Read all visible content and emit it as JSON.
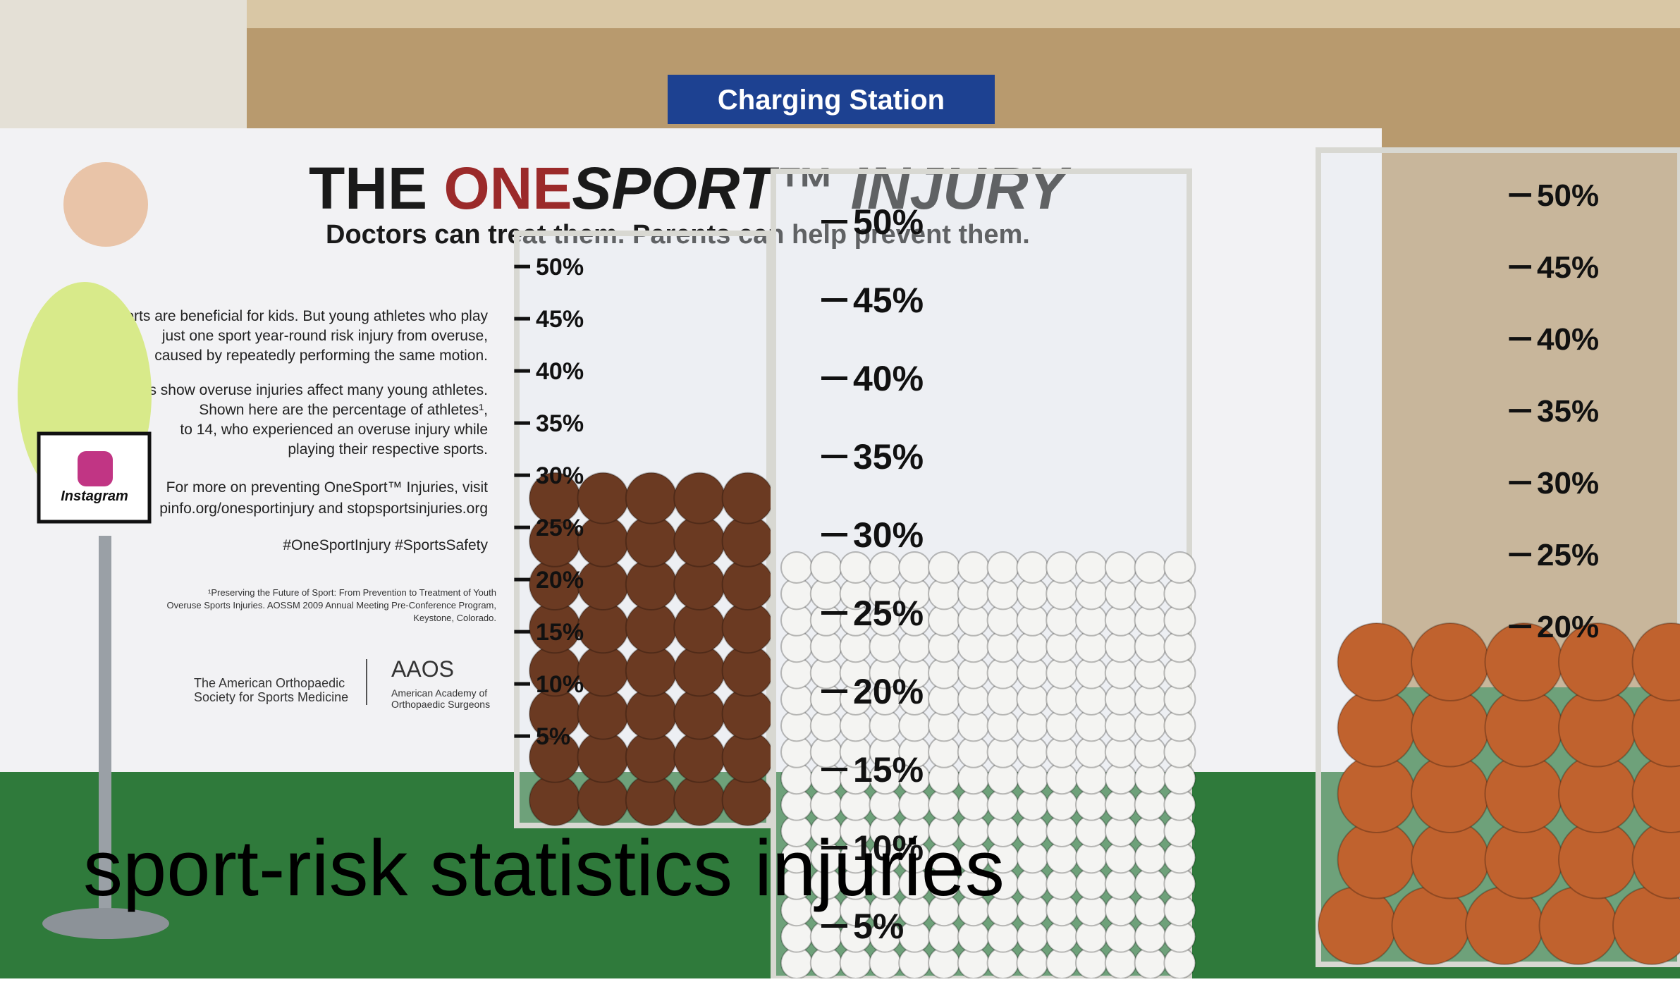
{
  "sign": "Charging Station",
  "banner": {
    "title": [
      "THE ",
      "ONE",
      "SPORT™ INJURY"
    ],
    "subtitle": "Doctors can treat them. Parents can help prevent them.",
    "paragraphs": [
      "Sports are beneficial for kids. But young athletes who play",
      "just one sport year-round risk injury from overuse,",
      "caused by repeatedly performing the same motion.",
      "Statistics show overuse injuries affect many young athletes.",
      "Shown here are the percentage of athletes¹,",
      "to 14, who experienced an overuse injury while",
      "playing their respective sports.",
      "For more on preventing OneSport™ Injuries, visit",
      "pinfo.org/onesportinjury and stopsportsinjuries.org",
      "#OneSportInjury #SportsSafety"
    ],
    "footnote": [
      "¹Preserving the Future of Sport: From Prevention to Treatment of Youth",
      "Overuse Sports Injuries. AOSSM 2009 Annual Meeting Pre-Conference Program,",
      "Keystone, Colorado."
    ],
    "logos": [
      "The American Orthopaedic",
      "Society for Sports Medicine",
      "AAOS",
      "American Academy of",
      "Orthopaedic Surgeons"
    ]
  },
  "instagram": "Instagram",
  "cases": [
    {
      "labels": [
        "50%",
        "45%",
        "40%",
        "35%",
        "30%",
        "25%",
        "20%",
        "15%",
        "10%",
        "5%"
      ]
    },
    {
      "labels": [
        "50%",
        "45%",
        "40%",
        "35%",
        "30%",
        "25%",
        "20%",
        "15%",
        "10%",
        "5%"
      ]
    },
    {
      "labels": [
        "50%",
        "45%",
        "40%",
        "35%",
        "30%",
        "25%",
        "20%"
      ]
    }
  ],
  "caption": "sport-risk statistics injuries"
}
